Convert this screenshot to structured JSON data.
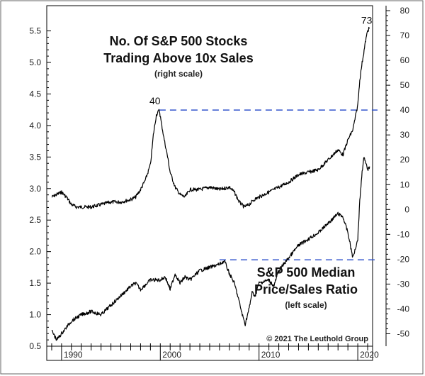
{
  "chart_data": {
    "type": "line",
    "title_top": {
      "line1": "No. Of S&P 500 Stocks",
      "line2": "Trading Above 10x Sales",
      "scale_note": "(right scale)"
    },
    "title_bottom": {
      "line1": "S&P 500 Median",
      "line2": "Price/Sales Ratio",
      "scale_note": "(left scale)"
    },
    "copyright": "© 2021  The Leuthold Group",
    "x_axis": {
      "range": [
        1988.5,
        2021.5
      ],
      "ticks": [
        1990,
        2000,
        2010,
        2020
      ],
      "tick_labels": [
        "1990",
        "2000",
        "2010",
        "2020"
      ]
    },
    "y_left": {
      "range": [
        0.5,
        5.9
      ],
      "ticks": [
        0.5,
        1.0,
        1.5,
        2.0,
        2.5,
        3.0,
        3.5,
        4.0,
        4.5,
        5.0,
        5.5
      ],
      "tick_labels": [
        "0.5",
        "1.0",
        "1.5",
        "2.0",
        "2.5",
        "3.0",
        "3.5",
        "4.0",
        "4.5",
        "5.0",
        "5.5"
      ]
    },
    "y_right": {
      "range": [
        -55,
        82
      ],
      "ticks": [
        -50,
        -40,
        -30,
        -20,
        -10,
        0,
        10,
        20,
        30,
        40,
        50,
        60,
        70,
        80
      ],
      "tick_labels": [
        "-50",
        "-40",
        "-30",
        "-20",
        "-10",
        "0",
        "10",
        "20",
        "30",
        "40",
        "50",
        "60",
        "70",
        "80"
      ]
    },
    "series": [
      {
        "name": "No. Of S&P 500 Stocks Trading Above 10x Sales",
        "axis": "right",
        "color": "#000000",
        "x": [
          1989.0,
          1989.5,
          1990.0,
          1990.5,
          1991.0,
          1991.5,
          1992.0,
          1993.0,
          1994.0,
          1995.0,
          1996.0,
          1997.0,
          1997.5,
          1998.0,
          1998.5,
          1999.0,
          1999.3,
          1999.6,
          1999.9,
          2000.1,
          2000.4,
          2000.7,
          2001.0,
          2001.5,
          2002.0,
          2002.5,
          2003.0,
          2004.0,
          2005.0,
          2006.0,
          2007.0,
          2007.5,
          2008.0,
          2008.5,
          2009.0,
          2009.5,
          2010.0,
          2011.0,
          2012.0,
          2013.0,
          2014.0,
          2015.0,
          2016.0,
          2017.0,
          2018.0,
          2018.5,
          2019.0,
          2019.5,
          2019.8,
          2020.0,
          2020.2,
          2020.4,
          2020.6,
          2020.8,
          2021.0,
          2021.2
        ],
        "values": [
          5,
          6,
          7,
          5,
          2,
          1,
          1,
          1,
          2,
          3,
          3,
          4,
          5,
          8,
          12,
          18,
          30,
          38,
          40,
          35,
          28,
          22,
          15,
          9,
          6,
          5,
          8,
          8,
          9,
          8,
          9,
          7,
          3,
          1,
          2,
          4,
          5,
          7,
          9,
          11,
          14,
          15,
          16,
          20,
          24,
          22,
          28,
          32,
          38,
          42,
          52,
          58,
          63,
          68,
          72,
          73
        ]
      },
      {
        "name": "S&P 500 Median Price/Sales Ratio",
        "axis": "left",
        "color": "#000000",
        "x": [
          1989.0,
          1989.5,
          1990.0,
          1990.5,
          1991.0,
          1992.0,
          1993.0,
          1994.0,
          1995.0,
          1996.0,
          1997.0,
          1997.5,
          1998.0,
          1999.0,
          2000.0,
          2000.5,
          2001.0,
          2001.5,
          2002.0,
          2002.5,
          2003.0,
          2004.0,
          2005.0,
          2006.0,
          2006.5,
          2007.0,
          2007.5,
          2008.0,
          2008.3,
          2008.6,
          2009.0,
          2009.3,
          2009.6,
          2010.0,
          2011.0,
          2011.5,
          2012.0,
          2013.0,
          2014.0,
          2015.0,
          2016.0,
          2017.0,
          2018.0,
          2018.5,
          2019.0,
          2019.5,
          2020.0,
          2020.2,
          2020.4,
          2020.6,
          2020.8,
          2021.0,
          2021.2
        ],
        "values": [
          0.75,
          0.6,
          0.7,
          0.8,
          0.9,
          1.0,
          1.05,
          1.0,
          1.15,
          1.3,
          1.45,
          1.5,
          1.4,
          1.55,
          1.55,
          1.6,
          1.4,
          1.65,
          1.5,
          1.6,
          1.55,
          1.7,
          1.75,
          1.8,
          1.85,
          1.65,
          1.5,
          1.2,
          1.0,
          0.85,
          1.1,
          1.35,
          1.3,
          1.5,
          1.55,
          1.45,
          1.7,
          1.9,
          2.1,
          2.2,
          2.3,
          2.45,
          2.6,
          2.55,
          2.3,
          1.9,
          2.2,
          2.8,
          3.2,
          3.5,
          3.4,
          3.3,
          3.35
        ]
      }
    ],
    "reference_lines": [
      {
        "axis": "right",
        "value": 40,
        "x_start": 1999.9,
        "x_end": 2022.0,
        "style": "dashed",
        "color": "#3355cc",
        "label": "40"
      },
      {
        "axis": "left",
        "value": 1.87,
        "x_start": 2006.0,
        "x_end": 2022.0,
        "style": "dashed",
        "color": "#3355cc"
      }
    ],
    "annotations": [
      {
        "text": "73",
        "x": 2020.9,
        "axis": "right",
        "value": 73
      },
      {
        "text": "40",
        "x": 1999.6,
        "axis": "right",
        "value": 40
      }
    ],
    "grid": false
  }
}
